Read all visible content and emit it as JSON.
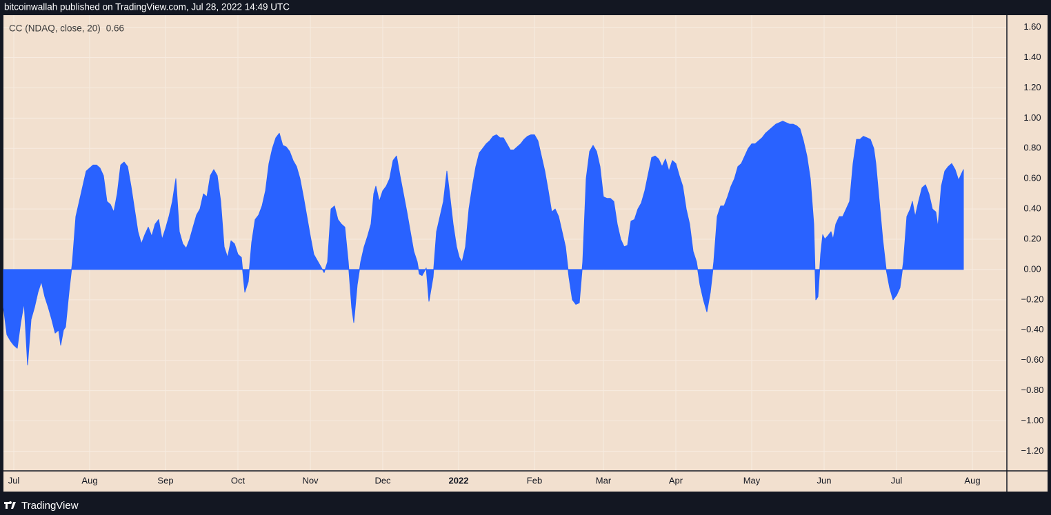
{
  "header": "bitcoinwallah published on TradingView.com, Jul 28, 2022 14:49 UTC",
  "footer": "TradingView",
  "chart_data": {
    "type": "area",
    "x": [
      0,
      1,
      2,
      3,
      4,
      5,
      6,
      7,
      8,
      9,
      10,
      11,
      12,
      13,
      14,
      15,
      16,
      16.6,
      17.4,
      18,
      19,
      20,
      21,
      22,
      23,
      24,
      25,
      26,
      27,
      28,
      29,
      30,
      31,
      32,
      33,
      34,
      35,
      36,
      37,
      38,
      39,
      40,
      41,
      42,
      43,
      44,
      45,
      46,
      47,
      48,
      49,
      50,
      51,
      52,
      53,
      54,
      55,
      56,
      57,
      58,
      59,
      60,
      61,
      62,
      63,
      64,
      65,
      66,
      67,
      68,
      69,
      70,
      71,
      72,
      73,
      74,
      75,
      76,
      77,
      78,
      79,
      80,
      81,
      82,
      83,
      84,
      85,
      86,
      87,
      88,
      89,
      90,
      91,
      92,
      93,
      94,
      95,
      96,
      97,
      98,
      99,
      100,
      101,
      101.6,
      102.6,
      103.6,
      104.6,
      105.6,
      106.6,
      107.4,
      108,
      109,
      110,
      111,
      112,
      113,
      114,
      115,
      116,
      117,
      118,
      119,
      120,
      120.6,
      121.4,
      122.6,
      123.4,
      124.6,
      125.6,
      126.6,
      127.6,
      128.6,
      129.4,
      130.4,
      131.4,
      132.2,
      133,
      134,
      135,
      136,
      137,
      138,
      139,
      140,
      141,
      142,
      143,
      144,
      145,
      146,
      147,
      148,
      149,
      150,
      151,
      152,
      153,
      154,
      155,
      156,
      157,
      158,
      159,
      160,
      161,
      162,
      163,
      164,
      165,
      166,
      167,
      168,
      169,
      170,
      171,
      172,
      173,
      174,
      175,
      176,
      177,
      178,
      179,
      180,
      181,
      182,
      183,
      184,
      185,
      186,
      187,
      188,
      189,
      190,
      191,
      192,
      193,
      194,
      195,
      196,
      197,
      198,
      199,
      200,
      201,
      202,
      203,
      204,
      205,
      206,
      207,
      208,
      209,
      210,
      211,
      212,
      213,
      214,
      215,
      216,
      217,
      218,
      219,
      220,
      221,
      222,
      223,
      224,
      225,
      226,
      227,
      228,
      229,
      230,
      231,
      232,
      233,
      234,
      235,
      235.6,
      236.2,
      237,
      237.6,
      238.2,
      239,
      240,
      240.6,
      241.4,
      242.4,
      243.4,
      244.4,
      245.4,
      246.4,
      247.4,
      248.4,
      249.4,
      250.4,
      251.4,
      252.4,
      253,
      254,
      255,
      256,
      257,
      258,
      259,
      260,
      261,
      262,
      263,
      263.6,
      264.4,
      265.4,
      266.4,
      267.4,
      268.4,
      269.4,
      270.4,
      271,
      272,
      273,
      274,
      275,
      276,
      277,
      278.4
    ],
    "series": [
      {
        "name": "CC (NDAQ, close, 20)",
        "color": "#2962ff",
        "last_value": 0.66,
        "values": [
          -0.25,
          -0.43,
          -0.47,
          -0.5,
          -0.52,
          -0.35,
          -0.22,
          -0.63,
          -0.33,
          -0.25,
          -0.15,
          -0.08,
          -0.18,
          -0.25,
          -0.33,
          -0.42,
          -0.4,
          -0.5,
          -0.4,
          -0.38,
          -0.15,
          0.05,
          0.35,
          0.45,
          0.55,
          0.65,
          0.67,
          0.69,
          0.69,
          0.67,
          0.62,
          0.45,
          0.43,
          0.38,
          0.5,
          0.69,
          0.71,
          0.68,
          0.55,
          0.4,
          0.25,
          0.17,
          0.23,
          0.28,
          0.22,
          0.3,
          0.33,
          0.2,
          0.27,
          0.35,
          0.45,
          0.6,
          0.25,
          0.17,
          0.14,
          0.2,
          0.28,
          0.36,
          0.4,
          0.5,
          0.48,
          0.62,
          0.66,
          0.62,
          0.45,
          0.15,
          0.08,
          0.19,
          0.17,
          0.1,
          0.08,
          -0.15,
          -0.08,
          0.18,
          0.33,
          0.36,
          0.42,
          0.52,
          0.7,
          0.8,
          0.87,
          0.9,
          0.82,
          0.81,
          0.78,
          0.72,
          0.68,
          0.6,
          0.48,
          0.35,
          0.22,
          0.1,
          0.06,
          0.02,
          -0.02,
          0.05,
          0.4,
          0.42,
          0.33,
          0.3,
          0.28,
          0.05,
          -0.25,
          -0.35,
          -0.1,
          0.05,
          0.15,
          0.22,
          0.3,
          0.5,
          0.55,
          0.45,
          0.52,
          0.55,
          0.6,
          0.72,
          0.75,
          0.62,
          0.5,
          0.38,
          0.25,
          0.12,
          0.05,
          -0.03,
          -0.04,
          0.01,
          -0.21,
          -0.05,
          0.25,
          0.35,
          0.45,
          0.65,
          0.5,
          0.3,
          0.15,
          0.08,
          0.05,
          0.15,
          0.4,
          0.55,
          0.68,
          0.77,
          0.8,
          0.83,
          0.85,
          0.88,
          0.89,
          0.87,
          0.87,
          0.83,
          0.79,
          0.79,
          0.81,
          0.83,
          0.86,
          0.88,
          0.89,
          0.89,
          0.85,
          0.75,
          0.65,
          0.52,
          0.38,
          0.4,
          0.35,
          0.25,
          0.15,
          -0.05,
          -0.2,
          -0.23,
          -0.22,
          0.05,
          0.6,
          0.78,
          0.82,
          0.78,
          0.68,
          0.48,
          0.47,
          0.47,
          0.45,
          0.3,
          0.2,
          0.15,
          0.16,
          0.32,
          0.33,
          0.4,
          0.44,
          0.52,
          0.63,
          0.74,
          0.75,
          0.73,
          0.68,
          0.73,
          0.65,
          0.72,
          0.7,
          0.62,
          0.55,
          0.4,
          0.3,
          0.12,
          0.05,
          -0.1,
          -0.2,
          -0.28,
          -0.15,
          0.05,
          0.35,
          0.42,
          0.42,
          0.48,
          0.55,
          0.6,
          0.68,
          0.7,
          0.75,
          0.8,
          0.83,
          0.83,
          0.85,
          0.87,
          0.9,
          0.92,
          0.94,
          0.96,
          0.97,
          0.98,
          0.97,
          0.96,
          0.96,
          0.95,
          0.93,
          0.85,
          0.75,
          0.6,
          0.3,
          -0.2,
          -0.18,
          0.1,
          0.23,
          0.2,
          0.22,
          0.25,
          0.2,
          0.3,
          0.35,
          0.35,
          0.4,
          0.45,
          0.7,
          0.86,
          0.86,
          0.88,
          0.87,
          0.86,
          0.8,
          0.7,
          0.45,
          0.2,
          0,
          -0.12,
          -0.2,
          -0.17,
          -0.12,
          0.05,
          0.35,
          0.4,
          0.45,
          0.35,
          0.45,
          0.54,
          0.56,
          0.5,
          0.4,
          0.38,
          0.28,
          0.55,
          0.65,
          0.68,
          0.7,
          0.66,
          0.59,
          0.66
        ]
      }
    ],
    "xlim": [
      0,
      291
    ],
    "xticks": [
      {
        "value": 3,
        "label": "Jul"
      },
      {
        "value": 25,
        "label": "Aug"
      },
      {
        "value": 47,
        "label": "Sep"
      },
      {
        "value": 68,
        "label": "Oct"
      },
      {
        "value": 89,
        "label": "Nov"
      },
      {
        "value": 110,
        "label": "Dec"
      },
      {
        "value": 132,
        "label": "2022"
      },
      {
        "value": 154,
        "label": "Feb"
      },
      {
        "value": 174,
        "label": "Mar"
      },
      {
        "value": 195,
        "label": "Apr"
      },
      {
        "value": 217,
        "label": "May"
      },
      {
        "value": 238,
        "label": "Jun"
      },
      {
        "value": 259,
        "label": "Jul"
      },
      {
        "value": 281,
        "label": "Aug"
      }
    ],
    "ylim": [
      -1.33,
      1.68
    ],
    "yticks": [
      {
        "value": 1.6,
        "label": "1.60"
      },
      {
        "value": 1.4,
        "label": "1.40"
      },
      {
        "value": 1.2,
        "label": "1.20"
      },
      {
        "value": 1,
        "label": "1.00"
      },
      {
        "value": 0.8,
        "label": "0.80"
      },
      {
        "value": 0.6,
        "label": "0.60"
      },
      {
        "value": 0.4,
        "label": "0.40"
      },
      {
        "value": 0.2,
        "label": "0.20"
      },
      {
        "value": 0,
        "label": "0.00"
      },
      {
        "value": -0.2,
        "label": "−0.20"
      },
      {
        "value": -0.4,
        "label": "−0.40"
      },
      {
        "value": -0.6,
        "label": "−0.60"
      },
      {
        "value": -0.8,
        "label": "−0.80"
      },
      {
        "value": -1,
        "label": "−1.00"
      },
      {
        "value": -1.2,
        "label": "−1.20"
      }
    ],
    "grid": true,
    "y_axis_side": "right"
  }
}
